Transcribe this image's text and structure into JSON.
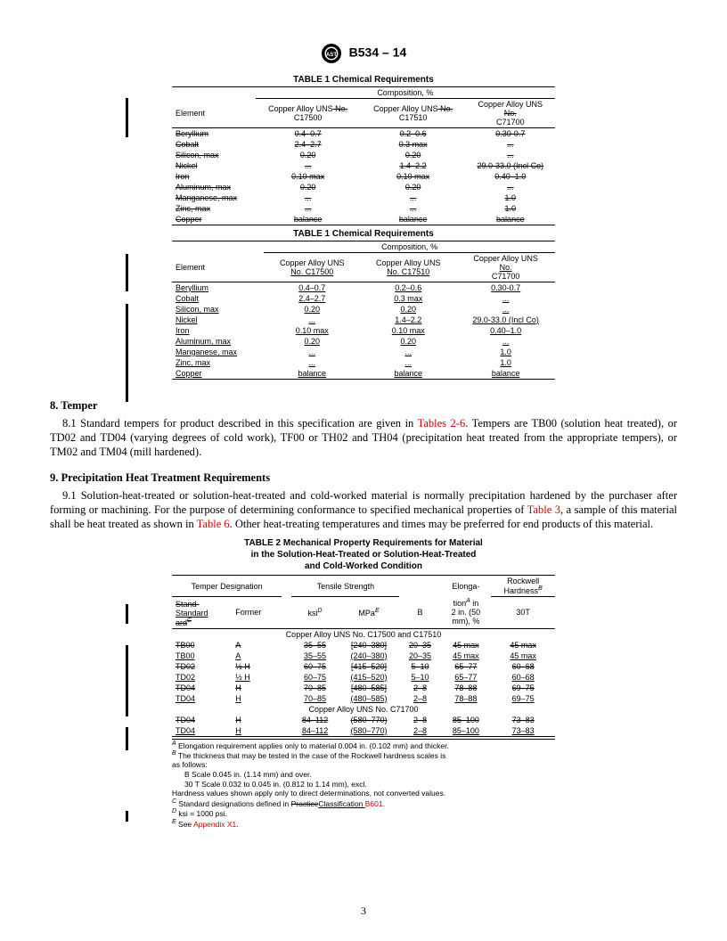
{
  "doc": {
    "designation": "B534 – 14",
    "page_number": "3"
  },
  "table1": {
    "title": "TABLE 1 Chemical Requirements",
    "comp_header": "Composition, %",
    "element_header": "Element",
    "col1_old": "Copper Alloy UNS No.",
    "col1_num": "C17500",
    "col2_old": "Copper Alloy UNS No.",
    "col2_num": "C17510",
    "col3_line1": "Copper Alloy UNS",
    "col3_line2": "No.",
    "col3_num": "C71700",
    "rows_struck": [
      {
        "el": "Beryllium",
        "c1": "0.4–0.7",
        "c2": "0.2–0.6",
        "c3": "0.30-0.7"
      },
      {
        "el": "Cobalt",
        "c1": "2.4–2.7",
        "c2": "0.3 max",
        "c3": "..."
      },
      {
        "el": "Silicon, max",
        "c1": "0.20",
        "c2": "0.20",
        "c3": "..."
      },
      {
        "el": "Nickel",
        "c1": "...",
        "c2": "1.4–2.2",
        "c3": "29.0-33.0 (Incl Co)"
      },
      {
        "el": "Iron",
        "c1": "0.10 max",
        "c2": "0.10 max",
        "c3": "0.40–1.0"
      },
      {
        "el": "Aluminum, max",
        "c1": "0.20",
        "c2": "0.20",
        "c3": "..."
      },
      {
        "el": "Manganese, max",
        "c1": "...",
        "c2": "...",
        "c3": "1.0"
      },
      {
        "el": "Zinc, max",
        "c1": "...",
        "c2": "...",
        "c3": "1.0"
      },
      {
        "el": "Copper",
        "c1": "balance",
        "c2": "balance",
        "c3": "balance"
      }
    ],
    "col1_new_l1": "Copper Alloy UNS",
    "col1_new_l2": "No. C17500",
    "col2_new_l1": "Copper Alloy UNS",
    "col2_new_l2": "No. C17510",
    "col3_new_l1": "Copper Alloy UNS",
    "col3_new_l2": "No.",
    "col3_new_l3": "C71700",
    "rows_new": [
      {
        "el": "Beryllium",
        "c1": "0.4–0.7",
        "c2": "0.2–0.6",
        "c3": "0.30-0.7"
      },
      {
        "el": "Cobalt",
        "c1": "2.4–2.7",
        "c2": "0.3 max",
        "c3": "..."
      },
      {
        "el": "Silicon, max",
        "c1": "0.20",
        "c2": "0.20",
        "c3": "..."
      },
      {
        "el": "Nickel",
        "c1": "...",
        "c2": "1.4–2.2",
        "c3": "29.0-33.0 (Incl Co)"
      },
      {
        "el": "Iron",
        "c1": "0.10 max",
        "c2": "0.10 max",
        "c3": "0.40–1.0"
      },
      {
        "el": "Aluminum, max",
        "c1": "0.20",
        "c2": "0.20",
        "c3": "..."
      },
      {
        "el": "Manganese, max",
        "c1": "...",
        "c2": "...",
        "c3": "1.0"
      },
      {
        "el": "Zinc, max",
        "c1": "...",
        "c2": "...",
        "c3": "1.0"
      },
      {
        "el": "Copper",
        "c1": "balance",
        "c2": "balance",
        "c3": "balance"
      }
    ]
  },
  "sections": {
    "s8_head": "8.  Temper",
    "s8_1_prefix": "8.1 Standard tempers for product described in this specification are given in ",
    "s8_1_link": "Tables 2-6",
    "s8_1_rest": ". Tempers are TB00 (solution heat treated), or TD02 and TD04 (varying degrees of cold work), TF00 or TH02 and TH04 (precipitation heat treated from the appropriate tempers), or TM02 and TM04 (mill hardened).",
    "s9_head": "9.  Precipitation Heat Treatment Requirements",
    "s9_1_a": "9.1  Solution-heat-treated or solution-heat-treated and cold-worked material is normally precipitation hardened by the purchaser after forming or machining. For the purpose of determining conformance to specified mechanical properties of ",
    "s9_1_link1": "Table 3",
    "s9_1_b": ", a sample of this material shall be heat treated as shown in ",
    "s9_1_link2": "Table 6",
    "s9_1_c": ". Other heat-treating temperatures and times may be preferred for end products of this material."
  },
  "table2": {
    "title1": "TABLE 2 Mechanical Property Requirements for Material",
    "title2": "in the Solution-Heat-Treated or Solution-Heat-Treated",
    "title3": "and Cold-Worked Condition",
    "hdr_temper": "Temper Designation",
    "hdr_tensile": "Tensile Strength",
    "hdr_elong1": "Elonga-",
    "hdr_elong2": "tion",
    "hdr_elong_sup": "A",
    "hdr_elong3": " in",
    "hdr_elong4": "2 in. (50",
    "hdr_elong5": "mm), %",
    "hdr_rock1": "Rockwell",
    "hdr_rock2": "Hardness",
    "hdr_rock_sup": "B",
    "hdr_std_old": "Stand-",
    "hdr_std_old2": "ard",
    "hdr_std_old_sup": "C",
    "hdr_std": "Standard",
    "hdr_former": "Former",
    "hdr_ksi": "ksi",
    "hdr_ksi_sup": "D",
    "hdr_mpa": "MPa",
    "hdr_mpa_sup": "E",
    "hdr_b": "B",
    "hdr_30t": "30T",
    "group1": "Copper Alloy UNS No. C17500 and C17510",
    "rows1": [
      {
        "std": "TB00",
        "fmr": "A",
        "ksi": "35–55",
        "mpa": "[240–380]",
        "b": "20–35",
        "el": "45 max",
        "h": "45 max",
        "strike": true
      },
      {
        "std": "TB00",
        "fmr": "A",
        "ksi": "35–55",
        "mpa": "(240–380)",
        "b": "20–35",
        "el": "45 max",
        "h": "45 max",
        "strike": false,
        "ul": true
      },
      {
        "std": "TD02",
        "fmr": "½ H",
        "ksi": "60–75",
        "mpa": "[415–520]",
        "b": "5–10",
        "el": "65–77",
        "h": "60–68",
        "strike": true
      },
      {
        "std": "TD02",
        "fmr": "½ H",
        "ksi": "60–75",
        "mpa": "(415–520)",
        "b": "5–10",
        "el": "65–77",
        "h": "60–68",
        "strike": false,
        "ul": true
      },
      {
        "std": "TD04",
        "fmr": "H",
        "ksi": "70–85",
        "mpa": "[480–585]",
        "b": "2–8",
        "el": "78–88",
        "h": "69–75",
        "strike": true
      },
      {
        "std": "TD04",
        "fmr": "H",
        "ksi": "70–85",
        "mpa": "(480–585)",
        "b": "2–8",
        "el": "78–88",
        "h": "69–75",
        "strike": false,
        "ul": true
      }
    ],
    "group2": "Copper Alloy UNS No. C71700",
    "rows2": [
      {
        "std": "TD04",
        "fmr": "H",
        "ksi": "84–112",
        "mpa": "(580–770)",
        "b": "2–8",
        "el": "85–100",
        "h": "73–83",
        "strike": true
      },
      {
        "std": "TD04",
        "fmr": "H",
        "ksi": "84–112",
        "mpa": "(580–770)",
        "b": "2–8",
        "el": "85–100",
        "h": "73–83",
        "strike": false,
        "ul": true
      }
    ]
  },
  "footnotes": {
    "a": " Elongation requirement applies only to material 0.004 in. (0.102 mm) and thicker.",
    "b1": " The thickness that may be tested in the case of the Rockwell hardness scales is",
    "b2": "as follows:",
    "b3": "B Scale 0.045 in. (1.14 mm) and over.",
    "b4": "30 T Scale 0.032 to 0.045 in. (0.812 to 1.14 mm), excl.",
    "b5": "Hardness values shown apply only to direct determinations, not converted values.",
    "c1": " Standard designations defined in ",
    "c_strike": "Practice",
    "c2": "Classification ",
    "c_link": "B601",
    "c3": ".",
    "d": " ksi = 1000 psi.",
    "e1": " See ",
    "e_link": "Appendix X1",
    "e2": "."
  }
}
